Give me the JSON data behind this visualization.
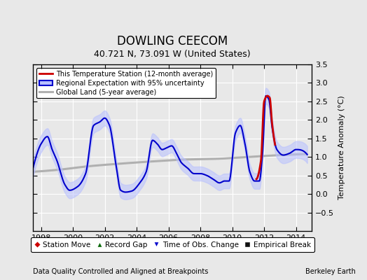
{
  "title": "DOWLING CEECOM",
  "subtitle": "40.721 N, 73.091 W (United States)",
  "xlabel_left": "Data Quality Controlled and Aligned at Breakpoints",
  "xlabel_right": "Berkeley Earth",
  "ylabel": "Temperature Anomaly (°C)",
  "xlim": [
    1997.5,
    2015.0
  ],
  "ylim": [
    -1.0,
    3.5
  ],
  "yticks": [
    -0.5,
    0,
    0.5,
    1,
    1.5,
    2,
    2.5,
    3,
    3.5
  ],
  "xticks": [
    1998,
    2000,
    2002,
    2004,
    2006,
    2008,
    2010,
    2012,
    2014
  ],
  "bg_color": "#e8e8e8",
  "fig_color": "#e8e8e8",
  "grid_color": "#ffffff",
  "title_fontsize": 12,
  "subtitle_fontsize": 9,
  "legend_items": [
    {
      "label": "This Temperature Station (12-month average)",
      "color": "#cc0000",
      "lw": 2
    },
    {
      "label": "Regional Expectation with 95% uncertainty",
      "color": "#0000cc",
      "lw": 1.5,
      "fill": "#b0b8ff"
    },
    {
      "label": "Global Land (5-year average)",
      "color": "#aaaaaa",
      "lw": 2
    }
  ],
  "bottom_legend": [
    {
      "label": "Station Move",
      "marker": "D",
      "color": "#cc0000"
    },
    {
      "label": "Record Gap",
      "marker": "^",
      "color": "#006600"
    },
    {
      "label": "Time of Obs. Change",
      "marker": "v",
      "color": "#0000cc"
    },
    {
      "label": "Empirical Break",
      "marker": "s",
      "color": "#111111"
    }
  ]
}
